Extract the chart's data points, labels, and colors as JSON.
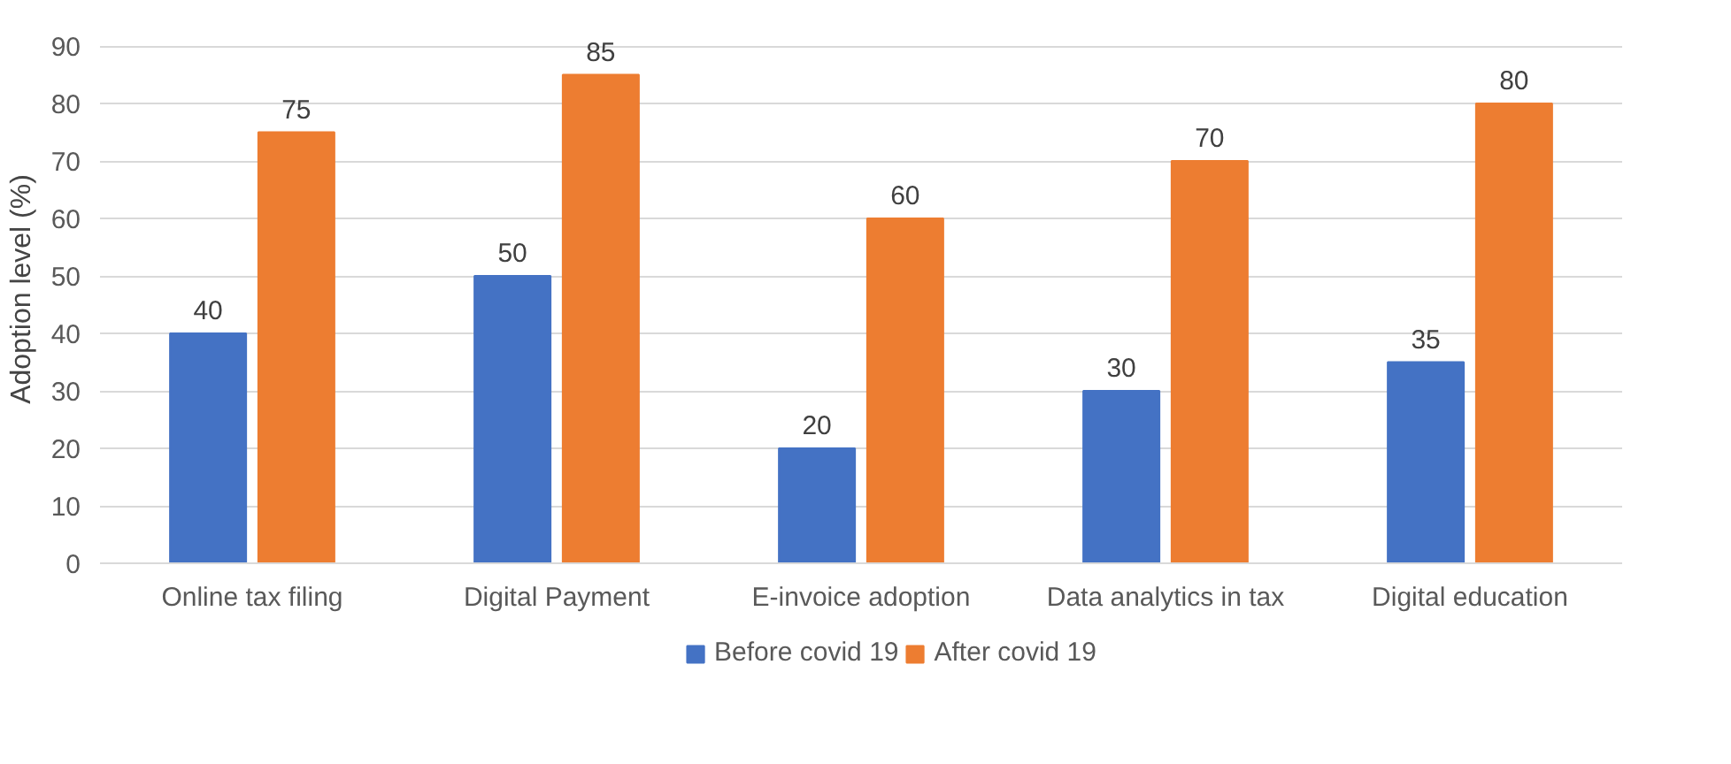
{
  "chart_data": {
    "type": "bar",
    "ylabel": "Adoption level (%)",
    "categories": [
      "Online tax filing",
      "Digital Payment",
      "E-invoice adoption",
      "Data analytics in tax",
      "Digital education"
    ],
    "series": [
      {
        "name": "Before covid 19",
        "color": "#4472c4",
        "values": [
          40,
          50,
          20,
          30,
          35
        ]
      },
      {
        "name": "After covid 19",
        "color": "#ed7d31",
        "values": [
          75,
          85,
          60,
          70,
          80
        ]
      }
    ],
    "ylim": [
      0,
      90
    ],
    "yticks": [
      0,
      10,
      20,
      30,
      40,
      50,
      60,
      70,
      80,
      90
    ],
    "grid": "y",
    "legend": "bottom",
    "data_labels": true
  }
}
